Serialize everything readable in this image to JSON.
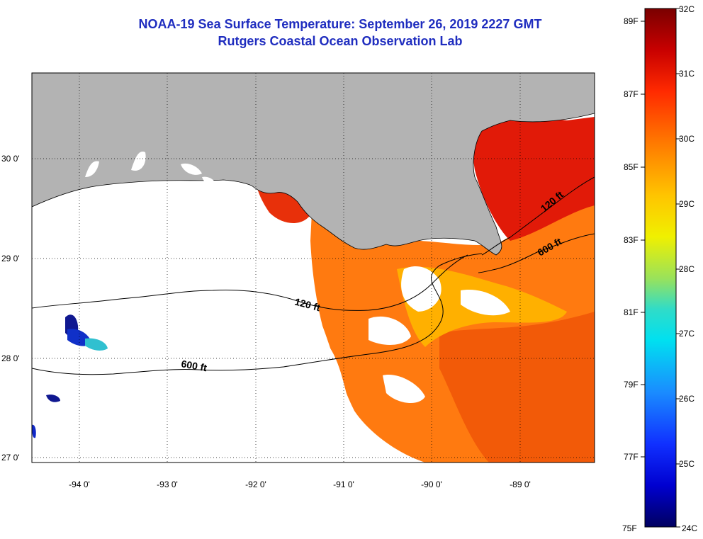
{
  "title": {
    "line1": "NOAA-19 Sea Surface Temperature:  September 26, 2019 2227 GMT",
    "line2": "Rutgers Coastal Ocean Observation Lab"
  },
  "axes": {
    "lat_labels": [
      "30 0'",
      "29 0'",
      "28 0'",
      "27 0'"
    ],
    "lon_labels": [
      "-94 0'",
      "-93 0'",
      "-92 0'",
      "-91 0'",
      "-90 0'",
      "-89 0'"
    ]
  },
  "isobaths": {
    "upper_120": "120 ft",
    "upper_600": "600 ft",
    "lower_120": "120 ft",
    "lower_600": "600 ft"
  },
  "colorbar": {
    "fahrenheit": [
      "89F",
      "87F",
      "85F",
      "83F",
      "81F",
      "79F",
      "77F",
      "75F"
    ],
    "celsius": [
      "32C",
      "31C",
      "30C",
      "29C",
      "28C",
      "27C",
      "26C",
      "25C",
      "24C"
    ]
  },
  "colors": {
    "land": "#b3b3b3",
    "title": "#1f2dbf",
    "warm": "#ff6a00",
    "hot": "#d40000",
    "mild": "#ffb400",
    "cool": "#1028c8"
  }
}
